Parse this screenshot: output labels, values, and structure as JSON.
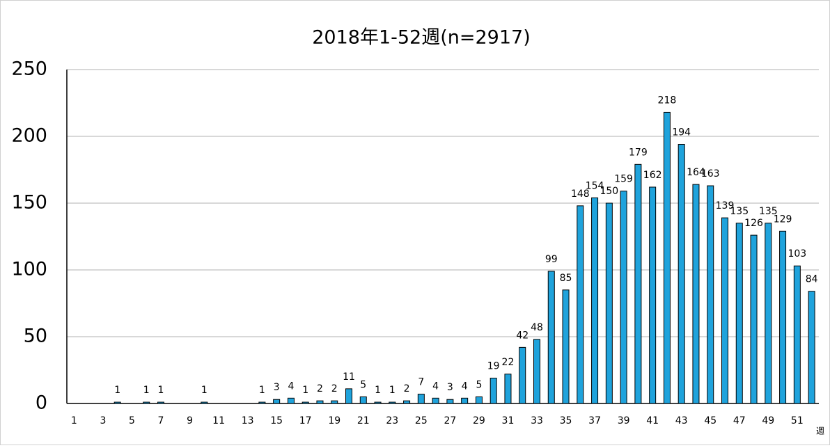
{
  "chart_data": {
    "type": "bar",
    "title": "2018年1-52週(n=2917)",
    "x_label": "週",
    "categories": [
      "1",
      null,
      "3",
      null,
      "5",
      null,
      "7",
      null,
      "9",
      null,
      "11",
      null,
      "13",
      null,
      "15",
      null,
      "17",
      null,
      "19",
      null,
      "21",
      null,
      "23",
      null,
      "25",
      null,
      "27",
      null,
      "29",
      null,
      "31",
      null,
      "33",
      null,
      "35",
      null,
      "37",
      null,
      "39",
      null,
      "41",
      null,
      "43",
      null,
      "45",
      null,
      "47",
      null,
      "49",
      null,
      "51",
      null
    ],
    "values": [
      0,
      0,
      0,
      1,
      0,
      1,
      1,
      0,
      0,
      1,
      0,
      0,
      0,
      1,
      3,
      4,
      1,
      2,
      2,
      11,
      5,
      1,
      1,
      2,
      7,
      4,
      3,
      4,
      5,
      19,
      22,
      42,
      48,
      99,
      85,
      148,
      154,
      150,
      159,
      179,
      162,
      218,
      194,
      164,
      163,
      139,
      135,
      126,
      135,
      129,
      103,
      84
    ],
    "color": "#1fa3dc",
    "ylim": [
      0,
      250
    ],
    "yticks": [
      0,
      50,
      100,
      150,
      200,
      250
    ],
    "grid": true
  }
}
